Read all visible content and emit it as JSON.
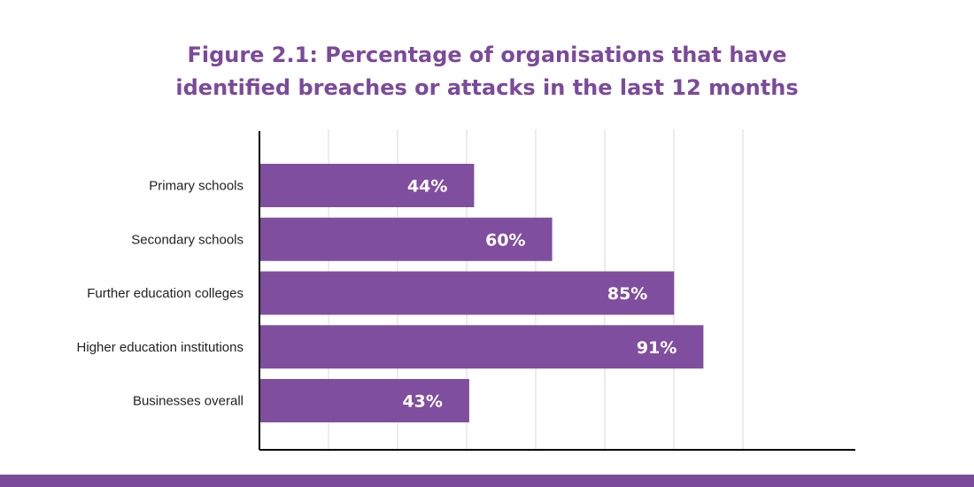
{
  "title_lines": [
    "Figure 2.1: Percentage of organisations that have",
    "identified breaches or attacks in the last 12 months"
  ],
  "colors": {
    "title": "#7B4A9A",
    "bar": "#804E9E",
    "grid": "#d9d9d9",
    "axis": "#000000",
    "footer_band": "#7B4A9A"
  },
  "chart_data": {
    "type": "bar",
    "orientation": "horizontal",
    "title": "Figure 2.1: Percentage of organisations that have identified breaches or attacks in the last 12 months",
    "categories": [
      "Primary schools",
      "Secondary schools",
      "Further education colleges",
      "Higher education institutions",
      "Businesses overall"
    ],
    "values": [
      44,
      60,
      85,
      91,
      43
    ],
    "value_labels": [
      "44%",
      "60%",
      "85%",
      "91%",
      "43%"
    ],
    "xlabel": "",
    "ylabel": "",
    "grid": true,
    "legend": "none"
  }
}
